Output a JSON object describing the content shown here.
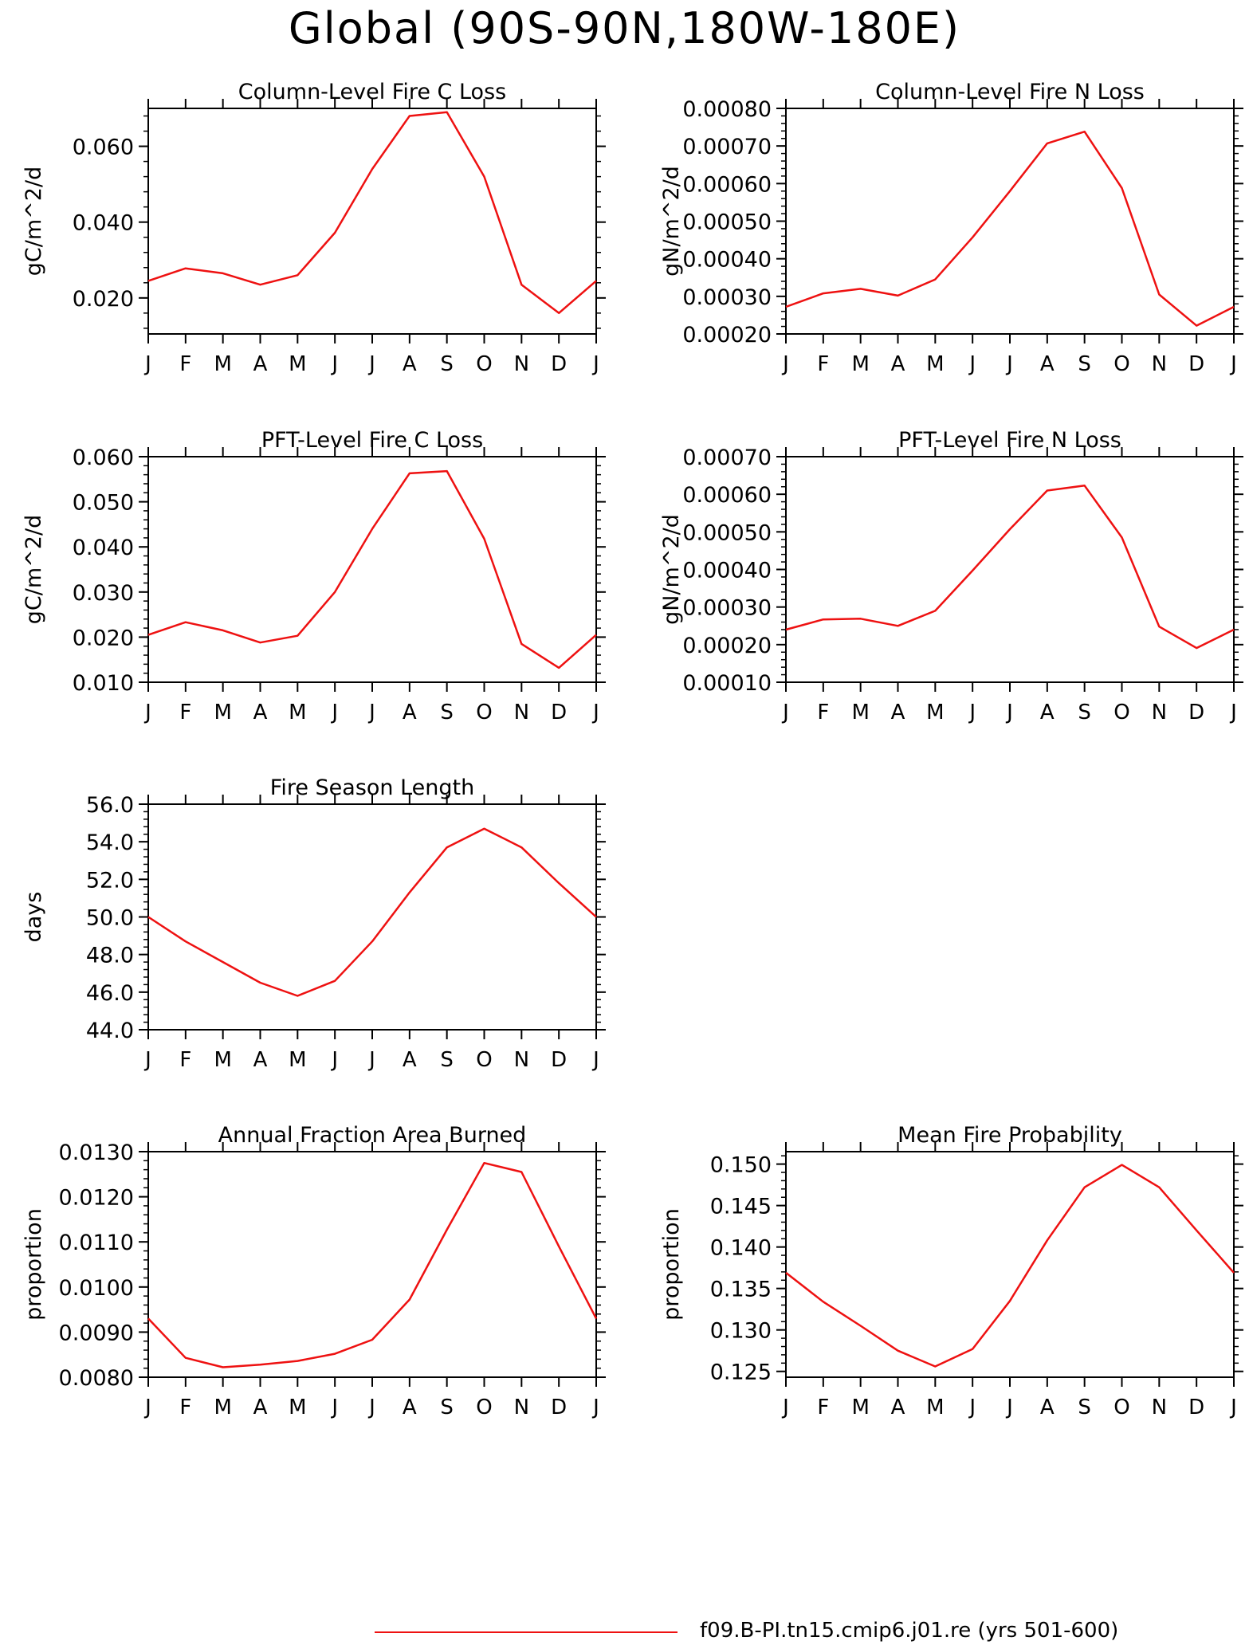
{
  "page_title": "Global (90S-90N,180W-180E)",
  "legend": {
    "label": "f09.B-PI.tn15.cmip6.j01.re (yrs 501-600)",
    "color": "#ee1111"
  },
  "x_ticks": [
    "J",
    "F",
    "M",
    "A",
    "M",
    "J",
    "J",
    "A",
    "S",
    "O",
    "N",
    "D",
    "J"
  ],
  "chart_data": [
    {
      "type": "line",
      "title": "Column-Level Fire C Loss",
      "ylabel": "gC/m^2/d",
      "ylim": [
        0.0105,
        0.07
      ],
      "yticks": [
        "0.020",
        "0.040",
        "0.060"
      ],
      "ytick_values": [
        0.02,
        0.04,
        0.06
      ],
      "categories": [
        "J",
        "F",
        "M",
        "A",
        "M",
        "J",
        "J",
        "A",
        "S",
        "O",
        "N",
        "D",
        "J"
      ],
      "values": [
        0.0245,
        0.0278,
        0.0265,
        0.0235,
        0.026,
        0.0372,
        0.054,
        0.068,
        0.069,
        0.052,
        0.0235,
        0.016,
        0.0245
      ],
      "line_color": "#ee1111"
    },
    {
      "type": "line",
      "title": "Column-Level Fire N Loss",
      "ylabel": "gN/m^2/d",
      "ylim": [
        0.0002,
        0.0008
      ],
      "yticks": [
        "0.00020",
        "0.00030",
        "0.00040",
        "0.00050",
        "0.00060",
        "0.00070",
        "0.00080"
      ],
      "ytick_values": [
        0.0002,
        0.0003,
        0.0004,
        0.0005,
        0.0006,
        0.0007,
        0.0008
      ],
      "categories": [
        "J",
        "F",
        "M",
        "A",
        "M",
        "J",
        "J",
        "A",
        "S",
        "O",
        "N",
        "D",
        "J"
      ],
      "values": [
        0.000272,
        0.000308,
        0.00032,
        0.000302,
        0.000345,
        0.000457,
        0.00058,
        0.000707,
        0.000738,
        0.000588,
        0.000305,
        0.000222,
        0.000272
      ],
      "line_color": "#ee1111"
    },
    {
      "type": "line",
      "title": "PFT-Level Fire C Loss",
      "ylabel": "gC/m^2/d",
      "ylim": [
        0.01,
        0.06
      ],
      "yticks": [
        "0.010",
        "0.020",
        "0.030",
        "0.040",
        "0.050",
        "0.060"
      ],
      "ytick_values": [
        0.01,
        0.02,
        0.03,
        0.04,
        0.05,
        0.06
      ],
      "categories": [
        "J",
        "F",
        "M",
        "A",
        "M",
        "J",
        "J",
        "A",
        "S",
        "O",
        "N",
        "D",
        "J"
      ],
      "values": [
        0.0205,
        0.0233,
        0.0215,
        0.0188,
        0.0203,
        0.03,
        0.044,
        0.0563,
        0.0568,
        0.0418,
        0.0185,
        0.0132,
        0.0205
      ],
      "line_color": "#ee1111"
    },
    {
      "type": "line",
      "title": "PFT-Level Fire N Loss",
      "ylabel": "gN/m^2/d",
      "ylim": [
        0.0001,
        0.0007
      ],
      "yticks": [
        "0.00010",
        "0.00020",
        "0.00030",
        "0.00040",
        "0.00050",
        "0.00060",
        "0.00070"
      ],
      "ytick_values": [
        0.0001,
        0.0002,
        0.0003,
        0.0004,
        0.0005,
        0.0006,
        0.0007
      ],
      "categories": [
        "J",
        "F",
        "M",
        "A",
        "M",
        "J",
        "J",
        "A",
        "S",
        "O",
        "N",
        "D",
        "J"
      ],
      "values": [
        0.00024,
        0.000267,
        0.000269,
        0.00025,
        0.00029,
        0.000397,
        0.000507,
        0.00061,
        0.000623,
        0.000485,
        0.000248,
        0.000191,
        0.00024
      ],
      "line_color": "#ee1111"
    },
    {
      "type": "line",
      "title": "Fire Season Length",
      "ylabel": "days",
      "ylim": [
        44.0,
        56.0
      ],
      "yticks": [
        "44.0",
        "46.0",
        "48.0",
        "50.0",
        "52.0",
        "54.0",
        "56.0"
      ],
      "ytick_values": [
        44.0,
        46.0,
        48.0,
        50.0,
        52.0,
        54.0,
        56.0
      ],
      "categories": [
        "J",
        "F",
        "M",
        "A",
        "M",
        "J",
        "J",
        "A",
        "S",
        "O",
        "N",
        "D",
        "J"
      ],
      "values": [
        50.0,
        48.7,
        47.6,
        46.5,
        45.8,
        46.6,
        48.7,
        51.3,
        53.7,
        54.7,
        53.7,
        51.8,
        50.0
      ],
      "line_color": "#ee1111"
    },
    {
      "type": "line",
      "title": "Annual Fraction Area Burned",
      "ylabel": "proportion",
      "ylim": [
        0.008,
        0.013
      ],
      "yticks": [
        "0.0080",
        "0.0090",
        "0.0100",
        "0.0110",
        "0.0120",
        "0.0130"
      ],
      "ytick_values": [
        0.008,
        0.009,
        0.01,
        0.011,
        0.012,
        0.013
      ],
      "categories": [
        "J",
        "F",
        "M",
        "A",
        "M",
        "J",
        "J",
        "A",
        "S",
        "O",
        "N",
        "D",
        "J"
      ],
      "values": [
        0.0093,
        0.00843,
        0.00822,
        0.00828,
        0.00836,
        0.00852,
        0.00883,
        0.00972,
        0.01127,
        0.01275,
        0.01255,
        0.0109,
        0.0093
      ],
      "line_color": "#ee1111"
    },
    {
      "type": "line",
      "title": "Mean Fire Probability",
      "ylabel": "proportion",
      "ylim": [
        0.1243,
        0.1515
      ],
      "yticks": [
        "0.125",
        "0.130",
        "0.135",
        "0.140",
        "0.145",
        "0.150"
      ],
      "ytick_values": [
        0.125,
        0.13,
        0.135,
        0.14,
        0.145,
        0.15
      ],
      "categories": [
        "J",
        "F",
        "M",
        "A",
        "M",
        "J",
        "J",
        "A",
        "S",
        "O",
        "N",
        "D",
        "J"
      ],
      "values": [
        0.1369,
        0.1334,
        0.1305,
        0.1275,
        0.1256,
        0.1277,
        0.1335,
        0.1408,
        0.1472,
        0.1499,
        0.1472,
        0.142,
        0.1369
      ],
      "line_color": "#ee1111"
    }
  ]
}
